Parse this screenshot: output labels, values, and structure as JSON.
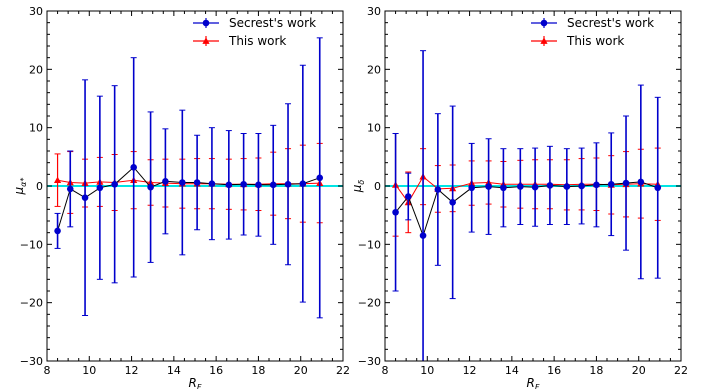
{
  "colors": {
    "secrest": "#0000cc",
    "this_work": "#ff0000",
    "zero_line": "#00e5e5",
    "connector": "#000000"
  },
  "chart_data": [
    {
      "type": "scatter",
      "panel": "left",
      "xlabel": "R_F",
      "ylabel": "μ_α*",
      "xlim": [
        8,
        22
      ],
      "ylim": [
        -30,
        30
      ],
      "xticks": [
        8,
        10,
        12,
        14,
        16,
        18,
        20,
        22
      ],
      "yticks": [
        -30,
        -20,
        -10,
        0,
        10,
        20,
        30
      ],
      "grid": false,
      "legend": "top-right",
      "reference_line": 0,
      "series": [
        {
          "name": "Secrest's work",
          "marker": "circle",
          "color": "#0000cc",
          "x": [
            8.5,
            9.1,
            9.8,
            10.5,
            11.2,
            12.1,
            12.9,
            13.6,
            14.4,
            15.1,
            15.8,
            16.6,
            17.3,
            18.0,
            18.7,
            19.4,
            20.1,
            20.9
          ],
          "y": [
            -7.7,
            -0.5,
            -2.0,
            -0.3,
            0.3,
            3.2,
            -0.2,
            0.8,
            0.6,
            0.6,
            0.4,
            0.2,
            0.3,
            0.2,
            0.2,
            0.3,
            0.4,
            1.4
          ],
          "err": [
            3.0,
            6.5,
            20.2,
            15.7,
            16.9,
            18.8,
            12.9,
            9.0,
            12.4,
            8.1,
            9.6,
            9.3,
            8.7,
            8.8,
            10.2,
            13.8,
            20.3,
            24.0
          ]
        },
        {
          "name": "This work",
          "marker": "triangle",
          "color": "#ff0000",
          "x": [
            8.5,
            9.1,
            9.8,
            10.5,
            11.2,
            12.1,
            12.9,
            13.6,
            14.4,
            15.1,
            15.8,
            16.6,
            17.3,
            18.0,
            18.7,
            19.4,
            20.1,
            20.9
          ],
          "y": [
            1.0,
            0.6,
            0.5,
            0.7,
            0.6,
            1.0,
            0.6,
            0.5,
            0.4,
            0.4,
            0.4,
            0.3,
            0.3,
            0.3,
            0.4,
            0.4,
            0.4,
            0.5
          ],
          "err": [
            4.5,
            5.3,
            4.1,
            4.2,
            4.8,
            4.9,
            3.9,
            4.1,
            4.2,
            4.3,
            4.3,
            4.3,
            4.4,
            4.5,
            5.4,
            6.0,
            6.6,
            6.8
          ]
        }
      ]
    },
    {
      "type": "scatter",
      "panel": "right",
      "xlabel": "R_F",
      "ylabel": "μ_δ",
      "xlim": [
        8,
        22
      ],
      "ylim": [
        -30,
        30
      ],
      "xticks": [
        8,
        10,
        12,
        14,
        16,
        18,
        20,
        22
      ],
      "yticks": [
        -30,
        -20,
        -10,
        0,
        10,
        20,
        30
      ],
      "grid": false,
      "legend": "top-right",
      "reference_line": 0,
      "series": [
        {
          "name": "Secrest's work",
          "marker": "circle",
          "color": "#0000cc",
          "x": [
            8.5,
            9.1,
            9.8,
            10.5,
            11.2,
            12.1,
            12.9,
            13.6,
            14.4,
            15.1,
            15.8,
            16.6,
            17.3,
            18.0,
            18.7,
            19.4,
            20.1,
            20.9
          ],
          "y": [
            -4.5,
            -1.8,
            -8.5,
            -0.6,
            -2.8,
            -0.3,
            -0.1,
            -0.3,
            -0.1,
            -0.2,
            0.1,
            -0.1,
            0.0,
            0.2,
            0.3,
            0.5,
            0.7,
            -0.3
          ],
          "err": [
            13.5,
            4.0,
            31.7,
            13.0,
            16.5,
            7.6,
            8.2,
            6.7,
            6.5,
            6.7,
            6.7,
            6.5,
            6.5,
            7.2,
            8.8,
            11.5,
            16.6,
            15.5
          ]
        },
        {
          "name": "This work",
          "marker": "triangle",
          "color": "#ff0000",
          "x": [
            8.5,
            9.1,
            9.8,
            10.5,
            11.2,
            12.1,
            12.9,
            13.6,
            14.4,
            15.1,
            15.8,
            16.6,
            17.3,
            18.0,
            18.7,
            19.4,
            20.1,
            20.9
          ],
          "y": [
            0.2,
            -2.8,
            1.6,
            -0.5,
            -0.4,
            0.5,
            0.6,
            0.3,
            0.3,
            0.3,
            0.3,
            0.2,
            0.3,
            0.3,
            0.2,
            0.3,
            0.4,
            0.3
          ],
          "err": [
            8.8,
            5.2,
            4.8,
            4.0,
            4.0,
            3.8,
            3.7,
            3.9,
            4.1,
            4.2,
            4.2,
            4.3,
            4.4,
            4.5,
            5.0,
            5.6,
            5.9,
            6.2
          ]
        }
      ]
    }
  ]
}
